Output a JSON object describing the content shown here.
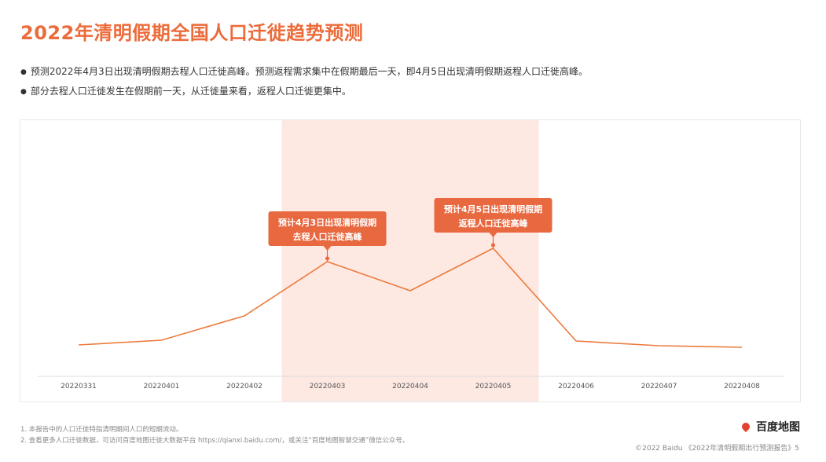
{
  "title": "2022年清明假期全国人口迁徙趋势预测",
  "bullets": [
    "预测2022年4月3日出现清明假期去程人口迁徙高峰。预测返程需求集中在假期最后一天，即4月5日出现清明假期返程人口迁徙高峰。",
    "部分去程人口迁徙发生在假期前一天，从迁徙量来看，返程人口迁徙更集中。"
  ],
  "chart_data": {
    "type": "line",
    "categories": [
      "20220331",
      "20220401",
      "20220402",
      "20220403",
      "20220404",
      "20220405",
      "20220406",
      "20220407",
      "20220408"
    ],
    "values": [
      40,
      46,
      77,
      146,
      109,
      163,
      45,
      39,
      37
    ],
    "ylim": [
      0,
      320
    ],
    "y_axis_shown": false,
    "grid": false,
    "highlight_range": [
      "20220403",
      "20220405"
    ],
    "colors": {
      "line": "#ec7a3c",
      "highlight": "#fde8e2",
      "callout": "#e8683f"
    },
    "annotations": [
      {
        "category": "20220403",
        "lines": [
          "预计4月3日出现清明假期",
          "去程人口迁徙高峰"
        ]
      },
      {
        "category": "20220405",
        "lines": [
          "预计4月5日出现清明假期",
          "返程人口迁徙高峰"
        ]
      }
    ]
  },
  "notes": [
    "1. 本报告中的人口迁徙特指清明期间人口的短期流动。",
    "2. 查看更多人口迁徙数据，可访问百度地图迁徙大数据平台 https://qianxi.baidu.com/，或关注“百度地图智慧交通”微信公众号。"
  ],
  "logo": "百度地图",
  "copyright": "©2022 Baidu 《2022年清明假期出行预测报告》5"
}
